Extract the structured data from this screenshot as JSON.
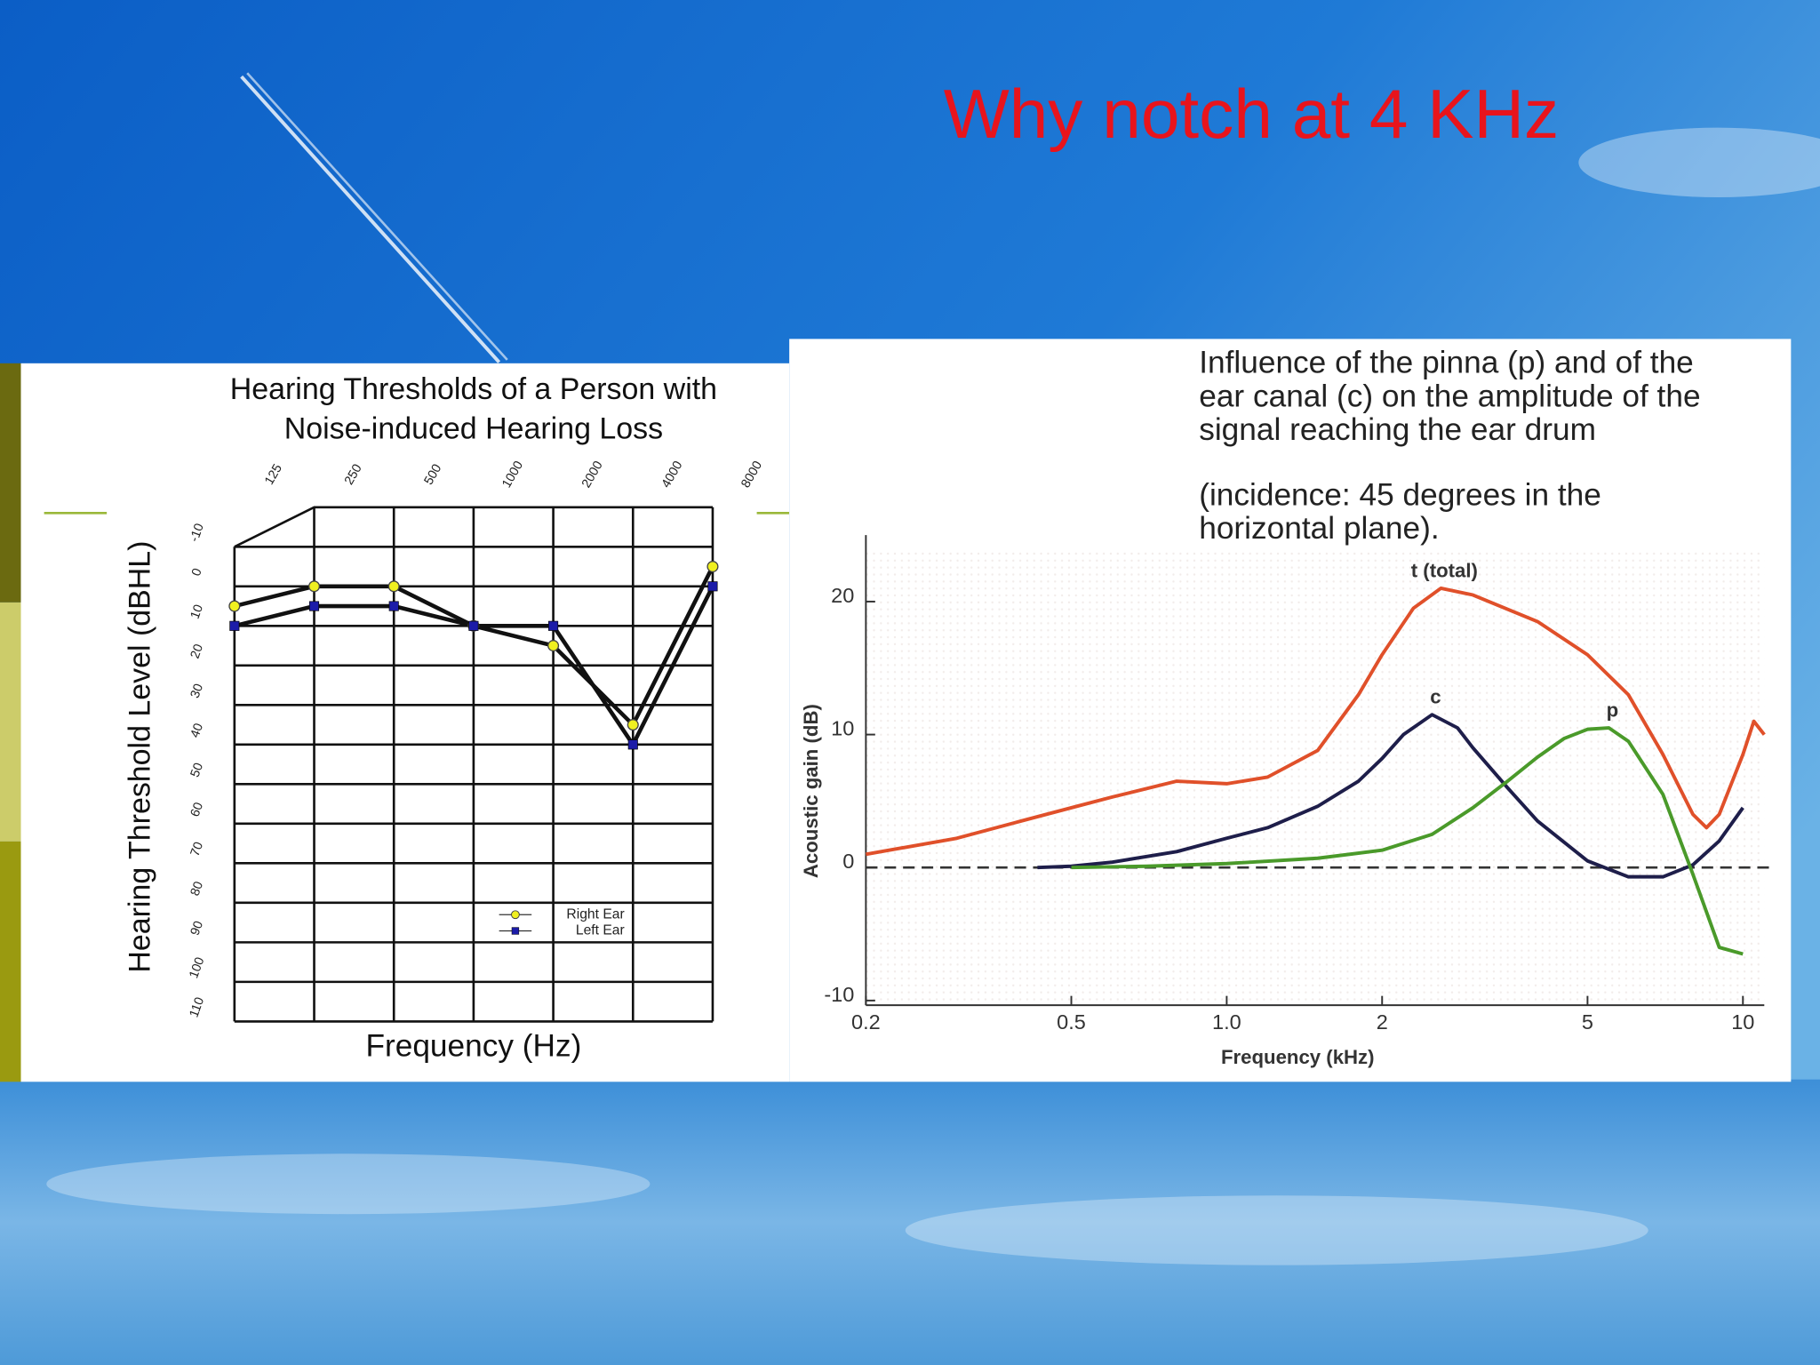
{
  "slide": {
    "title": "Why notch at 4 KHz"
  },
  "chart_data": [
    {
      "type": "line",
      "title": [
        "Hearing Thresholds of a Person with",
        "Noise-induced Hearing Loss"
      ],
      "ylabel": "Hearing Threshold Level (dBHL)",
      "xlabel": "Frequency (Hz)",
      "categories": [
        "125",
        "250",
        "500",
        "1000",
        "2000",
        "4000",
        "8000"
      ],
      "ylim": [
        -20,
        110
      ],
      "y_inverted": true,
      "yticks": [
        -10,
        0,
        10,
        20,
        30,
        40,
        50,
        60,
        70,
        80,
        90,
        100,
        110
      ],
      "grid": true,
      "legend": "lower right",
      "line_color": "#111111",
      "series": [
        {
          "name": "Right Ear",
          "color": "#f0f020",
          "marker": "circle",
          "values": [
            5,
            0,
            0,
            10,
            15,
            35,
            -5
          ]
        },
        {
          "name": "Left Ear",
          "color": "#1c1ca8",
          "marker": "square",
          "values": [
            10,
            5,
            5,
            10,
            10,
            40,
            0
          ]
        }
      ]
    },
    {
      "type": "line",
      "title": [
        "Influence of the pinna (p) and of the",
        "ear canal (c) on the amplitude of the",
        "signal reaching the ear drum"
      ],
      "subtitle": [
        "(incidence: 45 degrees in the",
        "horizontal plane)."
      ],
      "ylabel": "Acoustic gain (dB)",
      "xlabel": "Frequency (kHz)",
      "xscale": "log",
      "xlim": [
        0.2,
        11
      ],
      "xticks": [
        0.2,
        0.5,
        {
          "value": 1,
          "label": "1.0"
        },
        2,
        5,
        10
      ],
      "ylim": [
        -10,
        25
      ],
      "yticks": [
        -10,
        0,
        10,
        20
      ],
      "grid": false,
      "reference_lines": [
        0
      ],
      "series": [
        {
          "name": "t (total)",
          "color": "#e0502a",
          "x": [
            0.2,
            0.3,
            0.4,
            0.5,
            0.6,
            0.8,
            1.0,
            1.2,
            1.5,
            1.8,
            2.0,
            2.3,
            2.6,
            3.0,
            4.0,
            5.0,
            6.0,
            7.0,
            8.0,
            8.5,
            9.0,
            10.0,
            10.5,
            11.0
          ],
          "values": [
            1,
            2.2,
            3.5,
            4.5,
            5.3,
            6.5,
            6.3,
            6.8,
            8.8,
            13,
            16,
            19.5,
            21,
            20.5,
            18.5,
            16,
            13,
            8.5,
            4,
            3,
            4,
            8.5,
            11,
            10
          ]
        },
        {
          "name": "c",
          "color": "#1e1e4a",
          "x": [
            0.43,
            0.5,
            0.6,
            0.8,
            1.0,
            1.2,
            1.5,
            1.8,
            2.0,
            2.2,
            2.5,
            2.8,
            3.0,
            3.5,
            4.0,
            5.0,
            6.0,
            7.0,
            8.0,
            9.0,
            10.0
          ],
          "values": [
            0,
            0.1,
            0.4,
            1.2,
            2.2,
            3,
            4.6,
            6.5,
            8.2,
            10,
            11.5,
            10.5,
            9,
            6,
            3.5,
            0.5,
            -0.7,
            -0.7,
            0.2,
            2,
            4.5
          ]
        },
        {
          "name": "p",
          "color": "#4a9a2a",
          "x": [
            0.5,
            0.7,
            1.0,
            1.5,
            2.0,
            2.5,
            3.0,
            3.5,
            4.0,
            4.5,
            5.0,
            5.5,
            6.0,
            7.0,
            8.0,
            9.0,
            10.0
          ],
          "values": [
            0,
            0.1,
            0.3,
            0.7,
            1.3,
            2.5,
            4.5,
            6.5,
            8.3,
            9.7,
            10.4,
            10.5,
            9.5,
            5.5,
            -0.5,
            -6,
            -6.5
          ]
        }
      ]
    }
  ]
}
